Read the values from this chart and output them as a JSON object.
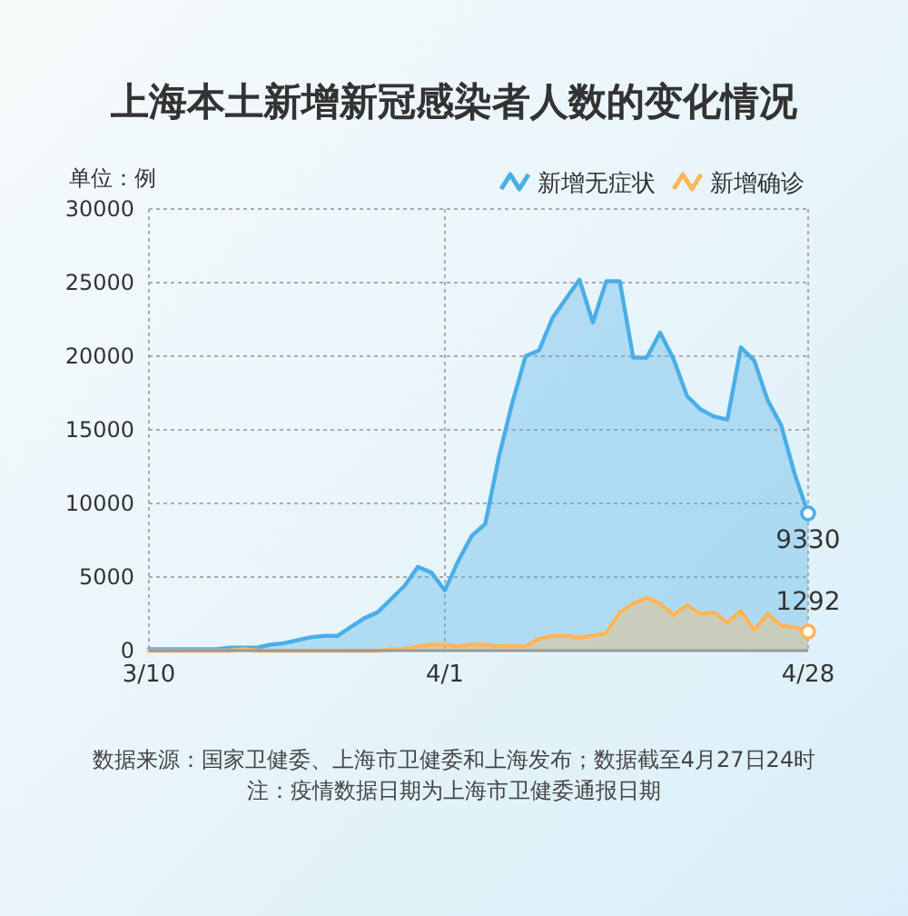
{
  "chart_data": {
    "type": "area",
    "title": "上海本土新增新冠感染者人数的变化情况",
    "ylabel": "单位：例",
    "x": [
      "--03-10",
      "--03-11",
      "--03-12",
      "--03-13",
      "--03-14",
      "--03-15",
      "--03-16",
      "--03-17",
      "--03-18",
      "--03-19",
      "--03-20",
      "--03-21",
      "--03-22",
      "--03-23",
      "--03-24",
      "--03-25",
      "--03-26",
      "--03-27",
      "--03-28",
      "--03-29",
      "--03-30",
      "--03-31",
      "--04-01",
      "--04-02",
      "--04-03",
      "--04-04",
      "--04-05",
      "--04-06",
      "--04-07",
      "--04-08",
      "--04-09",
      "--04-10",
      "--04-11",
      "--04-12",
      "--04-13",
      "--04-14",
      "--04-15",
      "--04-16",
      "--04-17",
      "--04-18",
      "--04-19",
      "--04-20",
      "--04-21",
      "--04-22",
      "--04-23",
      "--04-24",
      "--04-25",
      "--04-26",
      "--04-27",
      "--04-28"
    ],
    "series": [
      {
        "name": "新增无症状",
        "color": "#4aaee6",
        "values": [
          100,
          100,
          100,
          100,
          100,
          100,
          200,
          200,
          200,
          400,
          500,
          700,
          900,
          1000,
          1000,
          1600,
          2200,
          2600,
          3500,
          4400,
          5700,
          5300,
          4100,
          6100,
          7800,
          8600,
          13100,
          16800,
          20000,
          20400,
          22600,
          23900,
          25200,
          22300,
          25100,
          25100,
          19900,
          19900,
          21600,
          19800,
          17300,
          16400,
          15900,
          15700,
          20600,
          19700,
          17000,
          15300,
          12000,
          9330
        ],
        "value_labels": [
          null,
          null,
          null,
          null,
          null,
          null,
          null,
          null,
          null,
          null,
          null,
          null,
          null,
          null,
          null,
          null,
          null,
          null,
          null,
          null,
          null,
          null,
          null,
          null,
          null,
          null,
          null,
          null,
          null,
          null,
          null,
          null,
          null,
          null,
          null,
          null,
          null,
          null,
          null,
          null,
          null,
          null,
          null,
          null,
          null,
          null,
          null,
          null,
          null,
          "9330"
        ]
      },
      {
        "name": "新增确诊",
        "color": "#ffb65a",
        "values": [
          0,
          0,
          0,
          0,
          0,
          0,
          0,
          100,
          0,
          0,
          0,
          0,
          0,
          0,
          0,
          0,
          0,
          0,
          100,
          100,
          300,
          400,
          400,
          300,
          400,
          400,
          300,
          300,
          300,
          800,
          1000,
          1000,
          900,
          1000,
          1200,
          2600,
          3200,
          3600,
          3200,
          2400,
          3100,
          2500,
          2600,
          1900,
          2700,
          1400,
          2500,
          1700,
          1600,
          1292
        ],
        "value_labels": [
          null,
          null,
          null,
          null,
          null,
          null,
          null,
          null,
          null,
          null,
          null,
          null,
          null,
          null,
          null,
          null,
          null,
          null,
          null,
          null,
          null,
          null,
          null,
          null,
          null,
          null,
          null,
          null,
          null,
          null,
          null,
          null,
          null,
          null,
          null,
          null,
          null,
          null,
          null,
          null,
          null,
          null,
          null,
          null,
          null,
          null,
          null,
          null,
          null,
          "1292"
        ]
      }
    ],
    "xlim": [
      "--03-10",
      "--04-28"
    ],
    "xticks": [
      {
        "value": "--03-10",
        "label": "3/10"
      },
      {
        "value": "--04-01",
        "label": "4/1"
      },
      {
        "value": "--04-28",
        "label": "4/28"
      }
    ],
    "ylim": [
      0,
      30000
    ],
    "yticks": [
      0,
      5000,
      10000,
      15000,
      20000,
      25000,
      30000
    ],
    "grid": true,
    "legend": "top right",
    "annotations": [
      "数据来源：国家卫健委、上海市卫健委和上海发布；数据截至4月27日24时",
      "注：疫情数据日期为上海市卫健委通报日期"
    ]
  }
}
